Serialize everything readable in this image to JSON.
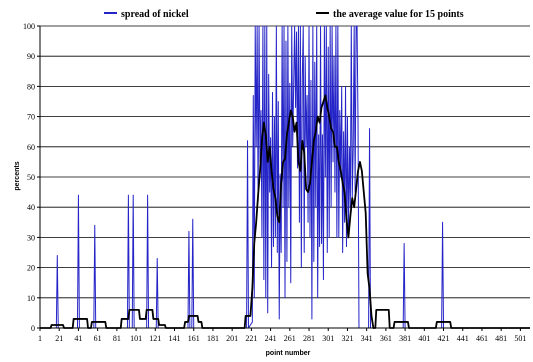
{
  "chart_data": {
    "type": "line",
    "xlabel": "point number",
    "ylabel": "percents",
    "ylim": [
      0,
      100
    ],
    "xlim": [
      1,
      511
    ],
    "yticks": [
      0,
      10,
      20,
      30,
      40,
      50,
      60,
      70,
      80,
      90,
      100
    ],
    "xticks": [
      1,
      21,
      41,
      61,
      81,
      101,
      121,
      141,
      161,
      181,
      201,
      221,
      241,
      261,
      281,
      301,
      321,
      341,
      361,
      381,
      401,
      421,
      441,
      461,
      481,
      501
    ],
    "grid": "horizontal",
    "legend_position": "top",
    "series": [
      {
        "name": "spread of nickel",
        "color": "#2424c8",
        "points": [
          [
            1,
            0
          ],
          [
            18,
            0
          ],
          [
            19,
            24
          ],
          [
            20,
            0
          ],
          [
            40,
            0
          ],
          [
            41,
            44
          ],
          [
            42,
            0
          ],
          [
            57,
            0
          ],
          [
            58,
            34
          ],
          [
            59,
            0
          ],
          [
            92,
            0
          ],
          [
            93,
            44
          ],
          [
            94,
            0
          ],
          [
            97,
            0
          ],
          [
            98,
            44
          ],
          [
            99,
            0
          ],
          [
            112,
            0
          ],
          [
            113,
            44
          ],
          [
            114,
            0
          ],
          [
            122,
            0
          ],
          [
            123,
            23
          ],
          [
            124,
            0
          ],
          [
            155,
            0
          ],
          [
            156,
            32
          ],
          [
            157,
            0
          ],
          [
            159,
            0
          ],
          [
            160,
            36
          ],
          [
            161,
            0
          ],
          [
            216,
            0
          ],
          [
            217,
            62
          ],
          [
            218,
            0
          ],
          [
            222,
            2
          ],
          [
            223,
            77
          ],
          [
            224,
            10
          ],
          [
            225,
            100
          ],
          [
            226,
            60
          ],
          [
            227,
            100
          ],
          [
            228,
            42
          ],
          [
            229,
            100
          ],
          [
            230,
            55
          ],
          [
            231,
            72
          ],
          [
            232,
            30
          ],
          [
            233,
            100
          ],
          [
            234,
            16
          ],
          [
            235,
            100
          ],
          [
            236,
            10
          ],
          [
            237,
            100
          ],
          [
            238,
            5
          ],
          [
            239,
            84
          ],
          [
            240,
            45
          ],
          [
            241,
            63
          ],
          [
            242,
            20
          ],
          [
            243,
            78
          ],
          [
            244,
            27
          ],
          [
            245,
            70
          ],
          [
            246,
            30
          ],
          [
            247,
            100
          ],
          [
            248,
            25
          ],
          [
            249,
            75
          ],
          [
            250,
            3
          ],
          [
            251,
            51
          ],
          [
            252,
            25
          ],
          [
            253,
            100
          ],
          [
            254,
            40
          ],
          [
            255,
            100
          ],
          [
            256,
            10
          ],
          [
            257,
            95
          ],
          [
            258,
            22
          ],
          [
            259,
            100
          ],
          [
            260,
            40
          ],
          [
            261,
            81
          ],
          [
            262,
            15
          ],
          [
            263,
            100
          ],
          [
            264,
            60
          ],
          [
            265,
            80
          ],
          [
            266,
            100
          ],
          [
            267,
            73
          ],
          [
            268,
            98
          ],
          [
            269,
            53
          ],
          [
            270,
            100
          ],
          [
            271,
            35
          ],
          [
            272,
            100
          ],
          [
            273,
            20
          ],
          [
            274,
            83
          ],
          [
            275,
            100
          ],
          [
            276,
            25
          ],
          [
            277,
            90
          ],
          [
            278,
            60
          ],
          [
            279,
            77
          ],
          [
            280,
            35
          ],
          [
            281,
            100
          ],
          [
            282,
            30
          ],
          [
            283,
            82
          ],
          [
            284,
            3
          ],
          [
            285,
            100
          ],
          [
            286,
            22
          ],
          [
            287,
            88
          ],
          [
            288,
            40
          ],
          [
            289,
            100
          ],
          [
            290,
            10
          ],
          [
            291,
            64
          ],
          [
            292,
            27
          ],
          [
            293,
            100
          ],
          [
            294,
            28
          ],
          [
            295,
            64
          ],
          [
            296,
            16
          ],
          [
            297,
            100
          ],
          [
            298,
            50
          ],
          [
            299,
            100
          ],
          [
            300,
            25
          ],
          [
            301,
            93
          ],
          [
            302,
            30
          ],
          [
            303,
            100
          ],
          [
            304,
            40
          ],
          [
            305,
            100
          ],
          [
            306,
            55
          ],
          [
            307,
            90
          ],
          [
            308,
            45
          ],
          [
            309,
            100
          ],
          [
            310,
            30
          ],
          [
            311,
            100
          ],
          [
            312,
            30
          ],
          [
            313,
            72
          ],
          [
            314,
            50
          ],
          [
            315,
            80
          ],
          [
            316,
            25
          ],
          [
            317,
            65
          ],
          [
            318,
            35
          ],
          [
            319,
            80
          ],
          [
            320,
            27
          ],
          [
            321,
            70
          ],
          [
            322,
            30
          ],
          [
            323,
            60
          ],
          [
            324,
            40
          ],
          [
            325,
            100
          ],
          [
            326,
            43
          ],
          [
            327,
            60
          ],
          [
            328,
            100
          ],
          [
            329,
            45
          ],
          [
            330,
            100
          ],
          [
            331,
            100
          ],
          [
            332,
            68
          ],
          [
            333,
            0
          ],
          [
            335,
            0
          ],
          [
            343,
            0
          ],
          [
            344,
            66
          ],
          [
            345,
            0
          ],
          [
            379,
            0
          ],
          [
            380,
            28
          ],
          [
            381,
            0
          ],
          [
            419,
            0
          ],
          [
            420,
            35
          ],
          [
            421,
            0
          ],
          [
            511,
            0
          ]
        ]
      },
      {
        "name": "the average value for 15 points",
        "color": "#000000",
        "points": [
          [
            1,
            0
          ],
          [
            12,
            0
          ],
          [
            13,
            1
          ],
          [
            25,
            1
          ],
          [
            26,
            0
          ],
          [
            35,
            0
          ],
          [
            36,
            3
          ],
          [
            50,
            3
          ],
          [
            51,
            0
          ],
          [
            54,
            0
          ],
          [
            55,
            2
          ],
          [
            69,
            2
          ],
          [
            70,
            0
          ],
          [
            85,
            0
          ],
          [
            86,
            3
          ],
          [
            93,
            3
          ],
          [
            94,
            6
          ],
          [
            104,
            6
          ],
          [
            105,
            3
          ],
          [
            111,
            3
          ],
          [
            112,
            6
          ],
          [
            118,
            6
          ],
          [
            119,
            3
          ],
          [
            124,
            3
          ],
          [
            125,
            1
          ],
          [
            131,
            1
          ],
          [
            132,
            0
          ],
          [
            151,
            0
          ],
          [
            152,
            2
          ],
          [
            155,
            2
          ],
          [
            156,
            4
          ],
          [
            165,
            4
          ],
          [
            166,
            2
          ],
          [
            169,
            2
          ],
          [
            170,
            0
          ],
          [
            210,
            0
          ],
          [
            214,
            0
          ],
          [
            215,
            4
          ],
          [
            220,
            4
          ],
          [
            222,
            13
          ],
          [
            224,
            28
          ],
          [
            226,
            35
          ],
          [
            228,
            44
          ],
          [
            230,
            52
          ],
          [
            232,
            62
          ],
          [
            234,
            68
          ],
          [
            236,
            64
          ],
          [
            238,
            55
          ],
          [
            240,
            60
          ],
          [
            242,
            52
          ],
          [
            244,
            46
          ],
          [
            246,
            43
          ],
          [
            248,
            37
          ],
          [
            250,
            35
          ],
          [
            252,
            48
          ],
          [
            254,
            55
          ],
          [
            256,
            56
          ],
          [
            258,
            64
          ],
          [
            260,
            68
          ],
          [
            262,
            72
          ],
          [
            264,
            70
          ],
          [
            266,
            65
          ],
          [
            268,
            68
          ],
          [
            270,
            55
          ],
          [
            272,
            52
          ],
          [
            274,
            62
          ],
          [
            276,
            58
          ],
          [
            278,
            46
          ],
          [
            280,
            45
          ],
          [
            282,
            48
          ],
          [
            284,
            55
          ],
          [
            286,
            62
          ],
          [
            288,
            65
          ],
          [
            290,
            70
          ],
          [
            292,
            68
          ],
          [
            294,
            73
          ],
          [
            296,
            75
          ],
          [
            298,
            77
          ],
          [
            300,
            73
          ],
          [
            302,
            70
          ],
          [
            304,
            66
          ],
          [
            306,
            65
          ],
          [
            308,
            60
          ],
          [
            310,
            60
          ],
          [
            312,
            55
          ],
          [
            314,
            52
          ],
          [
            316,
            48
          ],
          [
            318,
            45
          ],
          [
            320,
            36
          ],
          [
            322,
            30
          ],
          [
            324,
            37
          ],
          [
            326,
            43
          ],
          [
            328,
            40
          ],
          [
            330,
            46
          ],
          [
            332,
            52
          ],
          [
            334,
            55
          ],
          [
            336,
            52
          ],
          [
            338,
            45
          ],
          [
            340,
            38
          ],
          [
            342,
            18
          ],
          [
            344,
            13
          ],
          [
            346,
            4
          ],
          [
            348,
            0
          ],
          [
            350,
            0
          ],
          [
            351,
            6
          ],
          [
            364,
            6
          ],
          [
            365,
            0
          ],
          [
            369,
            0
          ],
          [
            370,
            2
          ],
          [
            384,
            2
          ],
          [
            385,
            0
          ],
          [
            413,
            0
          ],
          [
            414,
            2
          ],
          [
            428,
            2
          ],
          [
            429,
            0
          ],
          [
            511,
            0
          ]
        ]
      }
    ]
  }
}
